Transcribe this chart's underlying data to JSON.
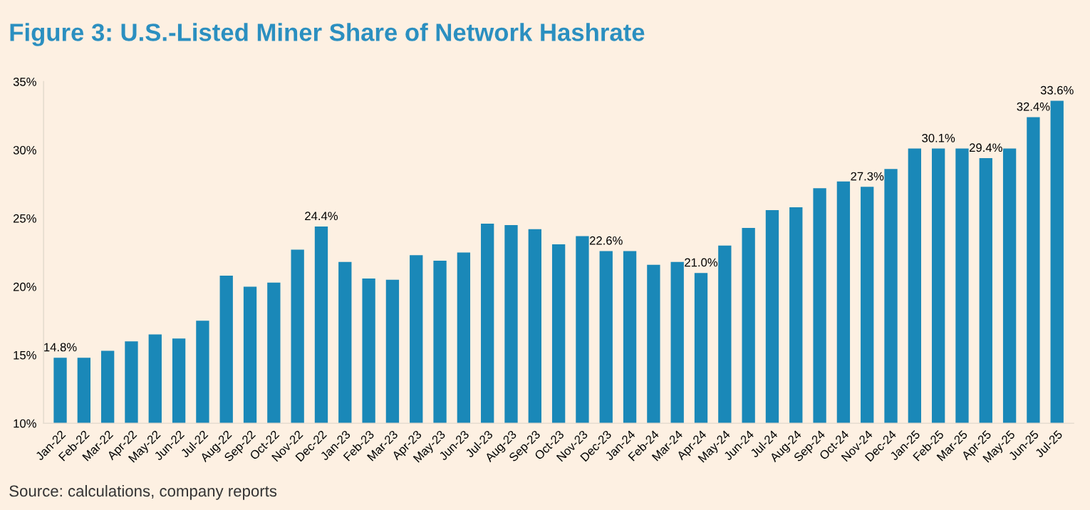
{
  "chart_data": {
    "type": "bar",
    "title": "Figure 3: U.S.-Listed Miner Share of Network Hashrate",
    "categories": [
      "Jan-22",
      "Feb-22",
      "Mar-22",
      "Apr-22",
      "May-22",
      "Jun-22",
      "Jul-22",
      "Aug-22",
      "Sep-22",
      "Oct-22",
      "Nov-22",
      "Dec-22",
      "Jan-23",
      "Feb-23",
      "Mar-23",
      "Apr-23",
      "May-23",
      "Jun-23",
      "Jul-23",
      "Aug-23",
      "Sep-23",
      "Oct-23",
      "Nov-23",
      "Dec-23",
      "Jan-24",
      "Feb-24",
      "Mar-24",
      "Apr-24",
      "May-24",
      "Jun-24",
      "Jul-24",
      "Aug-24",
      "Sep-24",
      "Oct-24",
      "Nov-24",
      "Dec-24",
      "Jan-25",
      "Feb-25",
      "Mar-25",
      "Apr-25",
      "May-25",
      "Jun-25",
      "Jul-25"
    ],
    "values": [
      14.8,
      14.8,
      15.3,
      16.0,
      16.5,
      16.2,
      17.5,
      20.8,
      20.0,
      20.3,
      22.7,
      24.4,
      21.8,
      20.6,
      20.5,
      22.3,
      21.9,
      22.5,
      24.6,
      24.5,
      24.2,
      23.1,
      23.7,
      22.6,
      22.6,
      21.6,
      21.8,
      21.0,
      23.0,
      24.3,
      25.6,
      25.8,
      27.2,
      27.7,
      27.3,
      28.6,
      30.1,
      30.1,
      30.1,
      29.4,
      30.1,
      32.4,
      33.6
    ],
    "value_labels": [
      "14.8%",
      null,
      null,
      null,
      null,
      null,
      null,
      null,
      null,
      null,
      null,
      "24.4%",
      null,
      null,
      null,
      null,
      null,
      null,
      null,
      null,
      null,
      null,
      null,
      "22.6%",
      null,
      null,
      null,
      "21.0%",
      null,
      null,
      null,
      null,
      null,
      null,
      "27.3%",
      null,
      null,
      "30.1%",
      null,
      "29.4%",
      null,
      "32.4%",
      "33.6%"
    ],
    "color": "#1a88b8",
    "ylim": [
      10,
      35
    ],
    "yticks": [
      {
        "value": 10,
        "label": "10%"
      },
      {
        "value": 15,
        "label": "15%"
      },
      {
        "value": 20,
        "label": "20%"
      },
      {
        "value": 25,
        "label": "25%"
      },
      {
        "value": 30,
        "label": "30%"
      },
      {
        "value": 35,
        "label": "35%"
      }
    ],
    "grid": false,
    "legend": false,
    "annotations": [
      "Source: calculations, company reports"
    ]
  }
}
